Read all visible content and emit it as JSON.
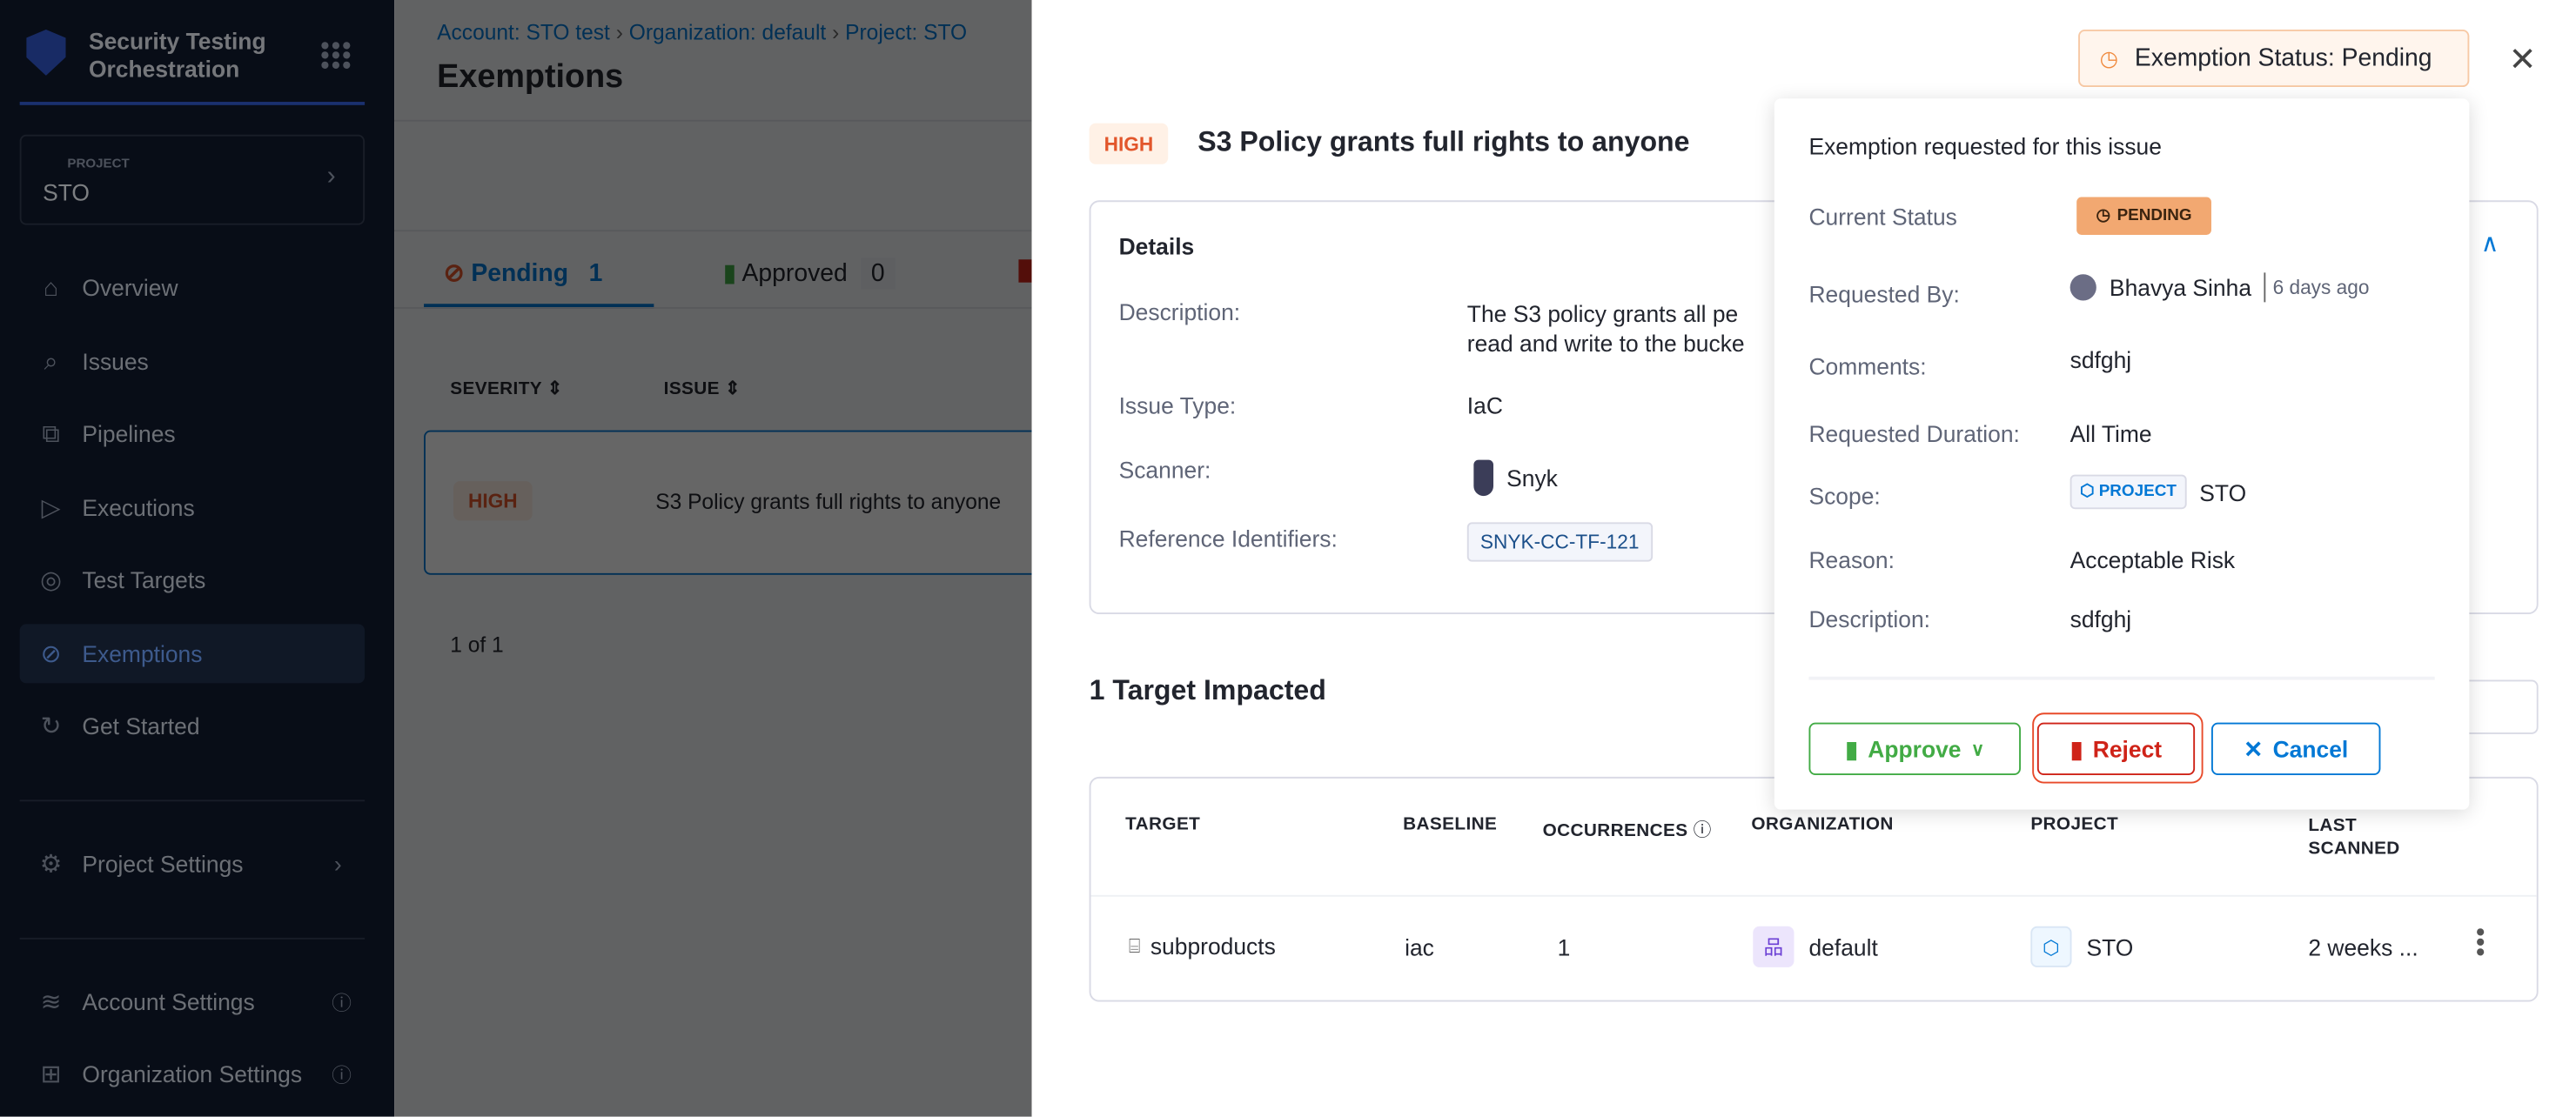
{
  "sidebar": {
    "title_line1": "Security Testing",
    "title_line2": "Orchestration",
    "project_label": "PROJECT",
    "project_value": "STO",
    "items": [
      {
        "label": "Overview",
        "icon": "home-icon"
      },
      {
        "label": "Issues",
        "icon": "issues-icon"
      },
      {
        "label": "Pipelines",
        "icon": "pipelines-icon"
      },
      {
        "label": "Executions",
        "icon": "executions-icon"
      },
      {
        "label": "Test Targets",
        "icon": "target-icon"
      },
      {
        "label": "Exemptions",
        "icon": "eye-off-icon",
        "active": true
      },
      {
        "label": "Get Started",
        "icon": "get-started-icon"
      }
    ],
    "project_settings": "Project Settings",
    "account_settings": "Account Settings",
    "org_settings": "Organization Settings"
  },
  "main": {
    "breadcrumb": [
      "Account: STO test",
      "Organization: default",
      "Project: STO"
    ],
    "title": "Exemptions",
    "tabs": [
      {
        "label": "Pending",
        "count": "1"
      },
      {
        "label": "Approved",
        "count": "0"
      }
    ],
    "columns": [
      "SEVERITY",
      "ISSUE"
    ],
    "row": {
      "severity": "HIGH",
      "issue": "S3 Policy grants full rights to anyone"
    },
    "pagination": "1 of 1"
  },
  "drawer": {
    "status_badge": "Exemption Status: Pending",
    "severity": "HIGH",
    "title": "S3 Policy grants full rights to anyone",
    "details": {
      "heading": "Details",
      "description_label": "Description:",
      "description_line1": "The S3 policy grants all pe",
      "description_line2": "read and write to the bucke",
      "issue_type_label": "Issue Type:",
      "issue_type": "IaC",
      "scanner_label": "Scanner:",
      "scanner": "Snyk",
      "ref_label": "Reference Identifiers:",
      "ref_id": "SNYK-CC-TF-121"
    },
    "targets_heading": "1 Target Impacted",
    "table": {
      "columns": [
        "TARGET",
        "BASELINE",
        "OCCURRENCES",
        "ORGANIZATION",
        "PROJECT",
        "LAST",
        "SCANNED"
      ],
      "row": {
        "target": "subproducts",
        "baseline": "iac",
        "occurrences": "1",
        "organization": "default",
        "project": "STO",
        "last_scanned": "2 weeks ..."
      }
    }
  },
  "popover": {
    "title": "Exemption requested for this issue",
    "current_status_label": "Current Status",
    "current_status": "PENDING",
    "requested_by_label": "Requested By:",
    "requested_by": "Bhavya Sinha",
    "requested_ago": "6 days ago",
    "comments_label": "Comments:",
    "comments": "sdfghj",
    "duration_label": "Requested Duration:",
    "duration": "All Time",
    "scope_label": "Scope:",
    "scope_tag": "PROJECT",
    "scope": "STO",
    "reason_label": "Reason:",
    "reason": "Acceptable Risk",
    "description_label": "Description:",
    "description": "sdfghj",
    "approve": "Approve",
    "reject": "Reject",
    "cancel": "Cancel"
  },
  "colors": {
    "accent": "#0278d5",
    "approve": "#42ab45",
    "reject": "#cf2318",
    "pending": "#f2a871"
  }
}
